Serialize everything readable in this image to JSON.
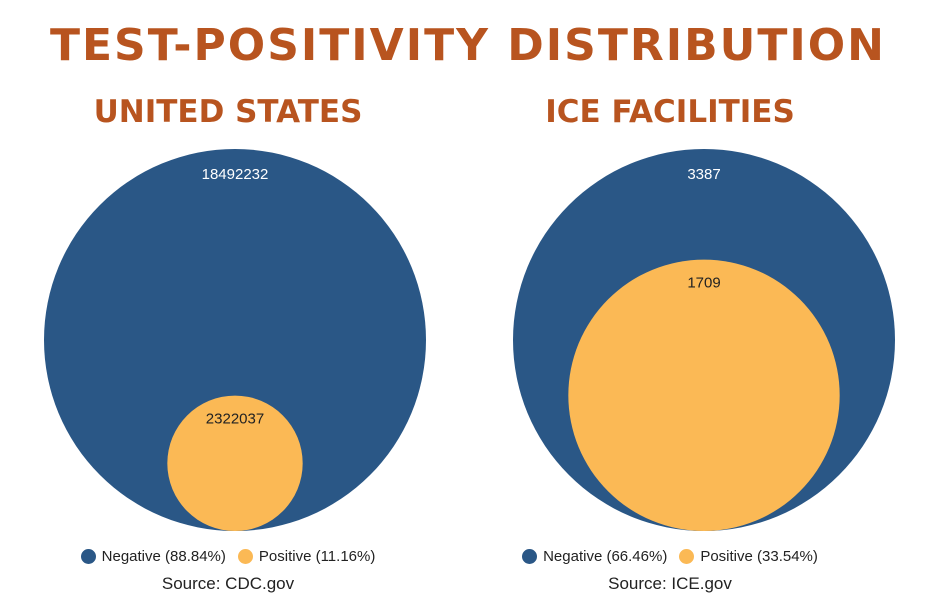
{
  "title": "TEST-POSITIVITY DISTRIBUTION",
  "colors": {
    "negative": "#2a5786",
    "positive": "#fbb955",
    "title": "#b8541f"
  },
  "chart_data": [
    {
      "type": "bubble",
      "title": "UNITED STATES",
      "series": [
        {
          "name": "Negative",
          "value": 18492232,
          "label": "18492232",
          "legend": "Negative (88.84%)"
        },
        {
          "name": "Positive",
          "value": 2322037,
          "label": "2322037",
          "legend": "Positive (11.16%)"
        }
      ],
      "source": "Source: CDC.gov"
    },
    {
      "type": "bubble",
      "title": "ICE FACILITIES",
      "series": [
        {
          "name": "Negative",
          "value": 3387,
          "label": "3387",
          "legend": "Negative (66.46%)"
        },
        {
          "name": "Positive",
          "value": 1709,
          "label": "1709",
          "legend": "Positive (33.54%)"
        }
      ],
      "source": "Source: ICE.gov"
    }
  ]
}
